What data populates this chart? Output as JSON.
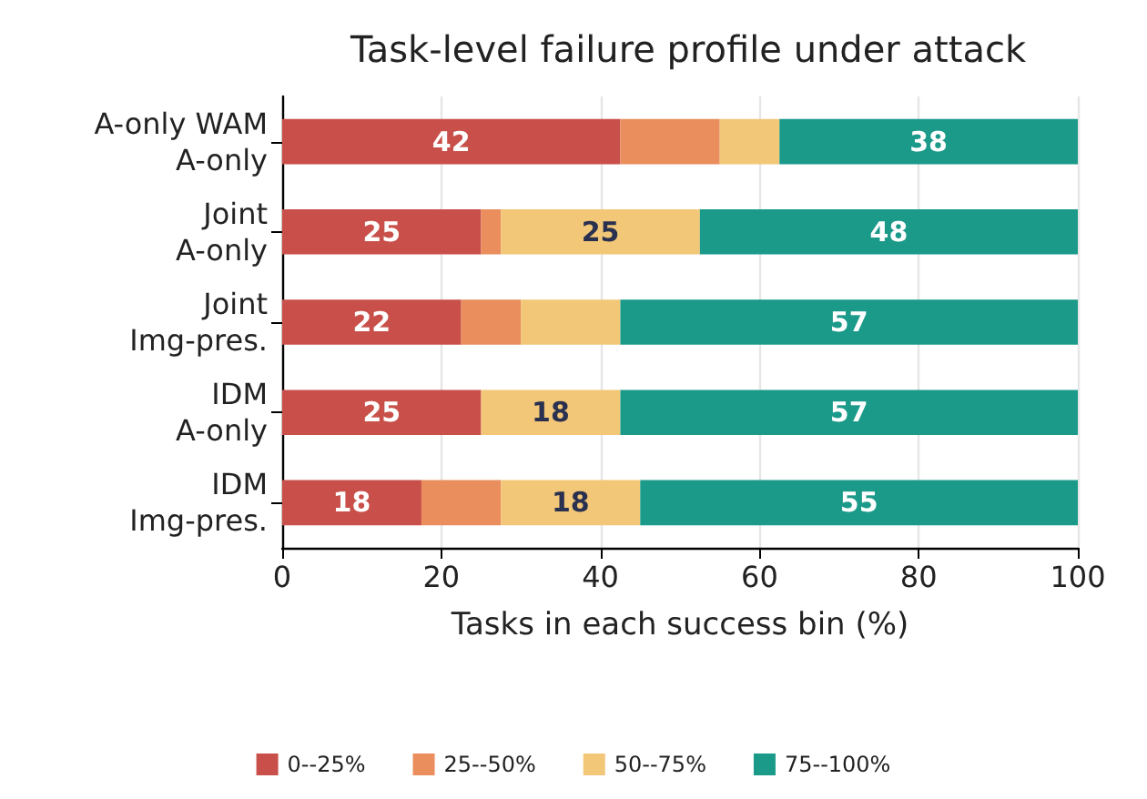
{
  "chart_data": {
    "type": "bar",
    "orientation": "horizontal",
    "stacked": true,
    "title": "Task-level failure profile under attack",
    "xlabel": "Tasks in each success bin (%)",
    "categories": [
      "A-only WAM\nA-only",
      "Joint\nA-only",
      "Joint\nImg-pres.",
      "IDM\nA-only",
      "IDM\nImg-pres."
    ],
    "series": [
      {
        "name": "0--25%",
        "color": "#c9504a",
        "values": [
          42.5,
          25,
          22.5,
          25,
          17.5
        ],
        "value_labels": [
          "42",
          "25",
          "22",
          "25",
          "18"
        ]
      },
      {
        "name": "25--50%",
        "color": "#e98e5c",
        "values": [
          12.5,
          2.5,
          7.5,
          0,
          10
        ],
        "value_labels": [
          null,
          null,
          null,
          null,
          null
        ]
      },
      {
        "name": "50--75%",
        "color": "#f2c777",
        "values": [
          7.5,
          25,
          12.5,
          17.5,
          17.5
        ],
        "value_labels": [
          null,
          "25",
          null,
          "18",
          "18"
        ]
      },
      {
        "name": "75--100%",
        "color": "#1b9a8a",
        "values": [
          37.5,
          47.5,
          57.5,
          57.5,
          55
        ],
        "value_labels": [
          "38",
          "48",
          "57",
          "57",
          "55"
        ]
      }
    ],
    "xlim": [
      0,
      100
    ],
    "xticks": [
      0,
      20,
      40,
      60,
      80,
      100
    ],
    "grid": "x",
    "legend": "bottom"
  }
}
